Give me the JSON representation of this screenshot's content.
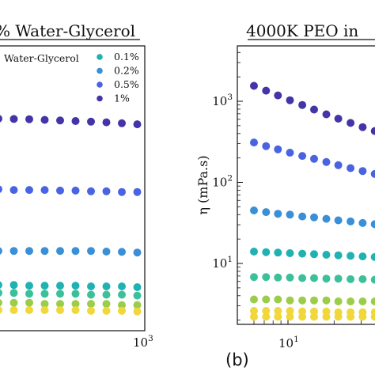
{
  "panel_b_label": "(b)",
  "colors": {
    "c0.1": "#20b2b2",
    "c0.2": "#3a8fd6",
    "c0.5": "#4a63e0",
    "c1": "#4334a8",
    "cyellow": "#f0d83a",
    "cgreen": "#9ccd4a",
    "cteal": "#3cc09a"
  },
  "chart_data": [
    {
      "type": "scatter",
      "title": "% Water-Glycerol",
      "legend_title": "Water-Glycerol",
      "legend_position": "top-right",
      "x_scale": "log",
      "x_ticks": [
        {
          "value": 1000,
          "mantissa": "10",
          "exponent": "3"
        }
      ],
      "series": [
        {
          "name": "0.1%",
          "color": "#20b2b2",
          "values": [
            5.6,
            5.6,
            5.5,
            5.5,
            5.5,
            5.5,
            5.4,
            5.4,
            5.4,
            5.3
          ]
        },
        {
          "name": "0.2%",
          "color": "#3a8fd6",
          "values": [
            13,
            13,
            13,
            13,
            13,
            13,
            13,
            12.8,
            12.7,
            12.5
          ]
        },
        {
          "name": "0.5%",
          "color": "#4a63e0",
          "values": [
            60,
            59,
            59,
            59,
            58,
            58,
            57,
            57,
            56,
            56
          ]
        },
        {
          "name": "1%",
          "color": "#4334a8",
          "values": [
            345,
            342,
            340,
            335,
            330,
            325,
            320,
            315,
            308,
            300
          ]
        },
        {
          "color": "#3cc09a",
          "values": [
            4.6,
            4.6,
            4.5,
            4.5,
            4.5,
            4.5,
            4.4,
            4.4,
            4.4,
            4.3
          ]
        },
        {
          "color": "#9ccd4a",
          "values": [
            3.6,
            3.6,
            3.6,
            3.5,
            3.5,
            3.5,
            3.5,
            3.5,
            3.4,
            3.4
          ]
        },
        {
          "color": "#f0d83a",
          "values": [
            3.0,
            3.0,
            3.0,
            3.0,
            3.0,
            3.0,
            2.95,
            2.95,
            2.95,
            2.9
          ]
        }
      ]
    },
    {
      "type": "scatter",
      "title": "4000K PEO in",
      "ylabel": "η (mPa.s)",
      "x_scale": "log",
      "y_scale": "log",
      "ylim": [
        1.7,
        4000
      ],
      "x_ticks": [
        {
          "value": 10,
          "mantissa": "10",
          "exponent": "1"
        }
      ],
      "y_ticks": [
        {
          "value": 10,
          "mantissa": "10",
          "exponent": "1"
        },
        {
          "value": 100,
          "mantissa": "10",
          "exponent": "2"
        },
        {
          "value": 1000,
          "mantissa": "10",
          "exponent": "3"
        }
      ],
      "x": [
        6,
        7.2,
        8.6,
        10.3,
        12.4,
        14.8,
        17.8,
        21.3,
        25.6,
        30.7,
        36.8
      ],
      "series": [
        {
          "name": "1%",
          "color": "#4334a8",
          "values": [
            1550,
            1350,
            1180,
            1030,
            900,
            790,
            690,
            610,
            540,
            480,
            430
          ]
        },
        {
          "name": "0.5%",
          "color": "#4a63e0",
          "values": [
            310,
            280,
            255,
            232,
            212,
            195,
            178,
            163,
            150,
            138,
            127
          ]
        },
        {
          "name": "0.2%",
          "color": "#3a8fd6",
          "values": [
            45,
            43,
            41,
            40,
            38,
            37,
            35.5,
            34,
            33,
            31.5,
            30.5
          ]
        },
        {
          "name": "0.1%",
          "color": "#20b2b2",
          "values": [
            14,
            13.8,
            13.6,
            13.4,
            13.2,
            13,
            12.8,
            12.6,
            12.4,
            12.2,
            12
          ]
        },
        {
          "color": "#3cc09a",
          "values": [
            6.8,
            6.8,
            6.7,
            6.7,
            6.6,
            6.6,
            6.5,
            6.5,
            6.4,
            6.4,
            6.3
          ]
        },
        {
          "color": "#9ccd4a",
          "values": [
            3.6,
            3.6,
            3.6,
            3.5,
            3.5,
            3.5,
            3.5,
            3.4,
            3.4,
            3.4,
            3.4
          ]
        },
        {
          "color": "#f0d83a",
          "values": [
            2.6,
            2.6,
            2.6,
            2.6,
            2.55,
            2.55,
            2.55,
            2.5,
            2.5,
            2.5,
            2.5
          ]
        },
        {
          "color": "#f0d83a",
          "values": [
            2.2,
            2.2,
            2.2,
            2.2,
            2.2,
            2.2,
            2.2,
            2.2,
            2.2,
            2.2,
            2.2
          ]
        }
      ]
    }
  ]
}
